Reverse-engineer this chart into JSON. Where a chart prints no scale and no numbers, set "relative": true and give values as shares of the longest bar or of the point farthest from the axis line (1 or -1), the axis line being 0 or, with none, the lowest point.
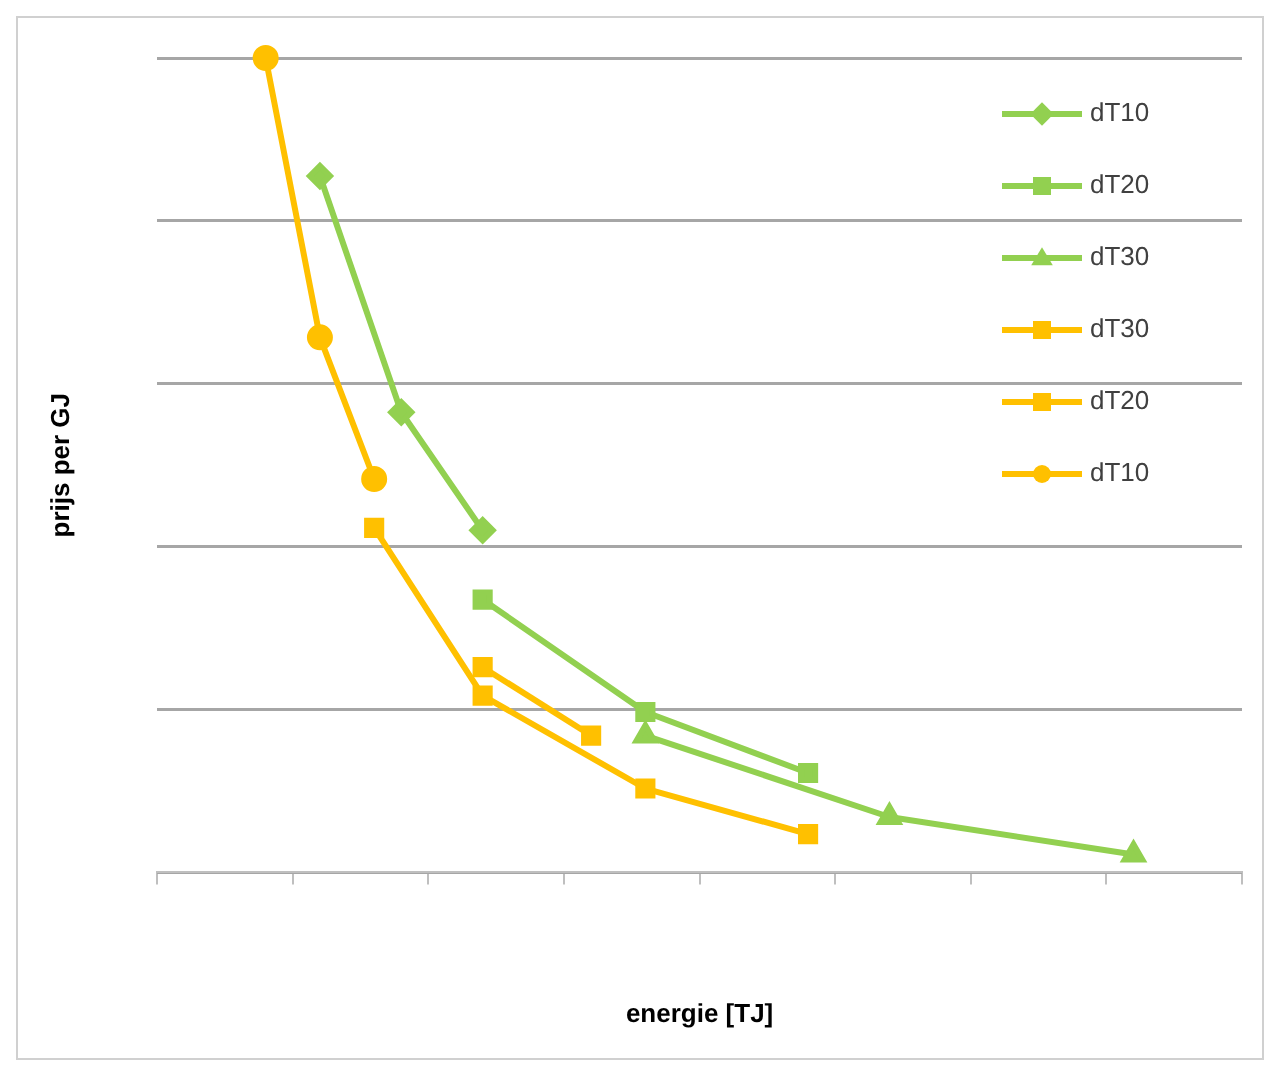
{
  "chart_data": {
    "type": "line",
    "xlabel": "energie [TJ]",
    "ylabel": "prijs per GJ",
    "relative": true,
    "categories": [
      null,
      null,
      null,
      null,
      null,
      null,
      null,
      null,
      null,
      null,
      null,
      null,
      null,
      null,
      null,
      null,
      null,
      null,
      null,
      null,
      null,
      null,
      null,
      null,
      null,
      null,
      null,
      null,
      null,
      null,
      null,
      null,
      null,
      null,
      null,
      null,
      null,
      null,
      null,
      null,
      null
    ],
    "grid": "y",
    "legend": "top right",
    "series": [
      {
        "name": "dT10",
        "color": "#92d050",
        "marker": "diamond",
        "values": [
          null,
          null,
          null,
          null,
          null,
          null,
          0.855,
          null,
          null,
          0.565,
          null,
          null,
          0.42,
          null,
          null,
          null,
          null,
          null,
          null,
          null,
          null,
          null,
          null,
          null,
          null,
          null,
          null,
          null,
          null,
          null,
          null,
          null,
          null,
          null,
          null,
          null,
          null,
          null,
          null,
          null,
          null
        ]
      },
      {
        "name": "dT20",
        "color": "#92d050",
        "marker": "square",
        "values": [
          null,
          null,
          null,
          null,
          null,
          null,
          null,
          null,
          null,
          null,
          null,
          null,
          0.335,
          null,
          null,
          null,
          null,
          null,
          0.197,
          null,
          null,
          null,
          null,
          null,
          0.122,
          null,
          null,
          null,
          null,
          null,
          null,
          null,
          null,
          null,
          null,
          null,
          null,
          null,
          null,
          null,
          null
        ]
      },
      {
        "name": "dT30",
        "color": "#92d050",
        "marker": "triangle",
        "values": [
          null,
          null,
          null,
          null,
          null,
          null,
          null,
          null,
          null,
          null,
          null,
          null,
          null,
          null,
          null,
          null,
          null,
          null,
          0.168,
          null,
          null,
          null,
          null,
          null,
          null,
          null,
          null,
          0.068,
          null,
          null,
          null,
          null,
          null,
          null,
          null,
          null,
          0.022,
          null,
          null,
          null,
          null
        ]
      },
      {
        "name": "dT30",
        "color": "#ffc000",
        "marker": "square",
        "values": [
          null,
          null,
          null,
          null,
          null,
          null,
          null,
          null,
          0.423,
          null,
          null,
          null,
          0.217,
          null,
          null,
          null,
          null,
          null,
          0.103,
          null,
          null,
          null,
          null,
          null,
          0.047,
          null,
          null,
          null,
          null,
          null,
          null,
          null,
          null,
          null,
          null,
          null,
          null,
          null,
          null,
          null,
          null
        ]
      },
      {
        "name": "dT20",
        "color": "#ffc000",
        "marker": "square",
        "values": [
          null,
          null,
          null,
          null,
          null,
          null,
          null,
          null,
          null,
          null,
          null,
          null,
          0.252,
          null,
          null,
          null,
          0.168,
          null,
          null,
          null,
          null,
          null,
          null,
          null,
          null,
          null,
          null,
          null,
          null,
          null,
          null,
          null,
          null,
          null,
          null,
          null,
          null,
          null,
          null,
          null,
          null
        ]
      },
      {
        "name": "dT10",
        "color": "#ffc000",
        "marker": "circle",
        "values": [
          null,
          null,
          null,
          null,
          1,
          null,
          0.657,
          null,
          0.483,
          null,
          null,
          null,
          null,
          null,
          null,
          null,
          null,
          null,
          null,
          null,
          null,
          null,
          null,
          null,
          null,
          null,
          null,
          null,
          null,
          null,
          null,
          null,
          null,
          null,
          null,
          null,
          null,
          null,
          null,
          null,
          null
        ]
      }
    ]
  }
}
